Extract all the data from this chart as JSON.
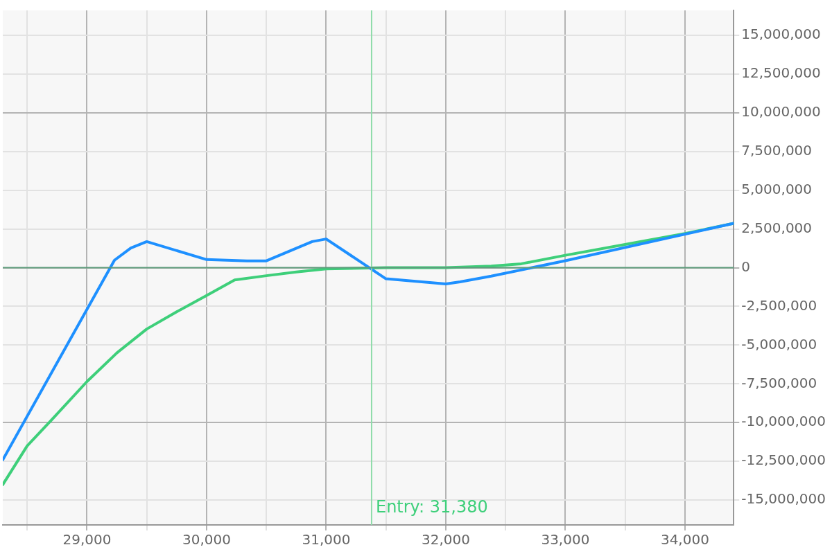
{
  "chart_data": {
    "type": "line",
    "series": [
      {
        "color": "#1e90ff",
        "x": [
          28296,
          29230,
          29367,
          29500,
          30000,
          30337,
          30500,
          30883,
          31000,
          31500,
          32000,
          32120,
          32380,
          33000,
          34408
        ],
        "values": [
          -12400000,
          480000,
          1270000,
          1680000,
          520000,
          440000,
          440000,
          1680000,
          1850000,
          -720000,
          -1050000,
          -920000,
          -550000,
          450000,
          2860000
        ]
      },
      {
        "color": "#3ecf7a",
        "x": [
          28296,
          28500,
          28704,
          29000,
          29250,
          29500,
          29750,
          30000,
          30235,
          30500,
          30750,
          31000,
          31500,
          32000,
          32380,
          32632,
          33000,
          33500,
          34000,
          34408
        ],
        "values": [
          -14000000,
          -11500000,
          -9830000,
          -7350000,
          -5500000,
          -3960000,
          -2850000,
          -1800000,
          -790000,
          -520000,
          -280000,
          -80000,
          0,
          0,
          100000,
          250000,
          800000,
          1500000,
          2200000,
          2860000
        ]
      }
    ],
    "xlim": [
      28296,
      34408
    ],
    "xticks": [
      {
        "value": 28500,
        "label": null
      },
      {
        "value": 29000,
        "label": "29,000"
      },
      {
        "value": 29500,
        "label": null
      },
      {
        "value": 30000,
        "label": "30,000"
      },
      {
        "value": 30500,
        "label": null
      },
      {
        "value": 31000,
        "label": "31,000"
      },
      {
        "value": 31500,
        "label": null
      },
      {
        "value": 32000,
        "label": "32,000"
      },
      {
        "value": 32500,
        "label": null
      },
      {
        "value": 33000,
        "label": "33,000"
      },
      {
        "value": 33500,
        "label": null
      },
      {
        "value": 34000,
        "label": "34,000"
      }
    ],
    "ylim": [
      -16600000,
      16600000
    ],
    "yticks": [
      {
        "value": -15000000,
        "label": "-15,000,000"
      },
      {
        "value": -12500000,
        "label": "-12,500,000"
      },
      {
        "value": -10000000,
        "label": "-10,000,000"
      },
      {
        "value": -7500000,
        "label": "-7,500,000"
      },
      {
        "value": -5000000,
        "label": "-5,000,000"
      },
      {
        "value": -2500000,
        "label": "-2,500,000"
      },
      0,
      {
        "value": 2500000,
        "label": "2,500,000"
      },
      {
        "value": 5000000,
        "label": "5,000,000"
      },
      {
        "value": 7500000,
        "label": "7,500,000"
      },
      {
        "value": 10000000,
        "label": "10,000,000"
      },
      {
        "value": 12500000,
        "label": "12,500,000"
      },
      {
        "value": 15000000,
        "label": "15,000,000"
      }
    ],
    "grid": true,
    "legend": false,
    "marker": "none",
    "line_style": "solid",
    "ref_lines": [
      {
        "axis": "x",
        "value": 31380,
        "label": "Entry: 31,380",
        "color": "#8fdcaa"
      },
      {
        "axis": "y",
        "value": 0,
        "color": "#5e9c7c"
      }
    ]
  }
}
